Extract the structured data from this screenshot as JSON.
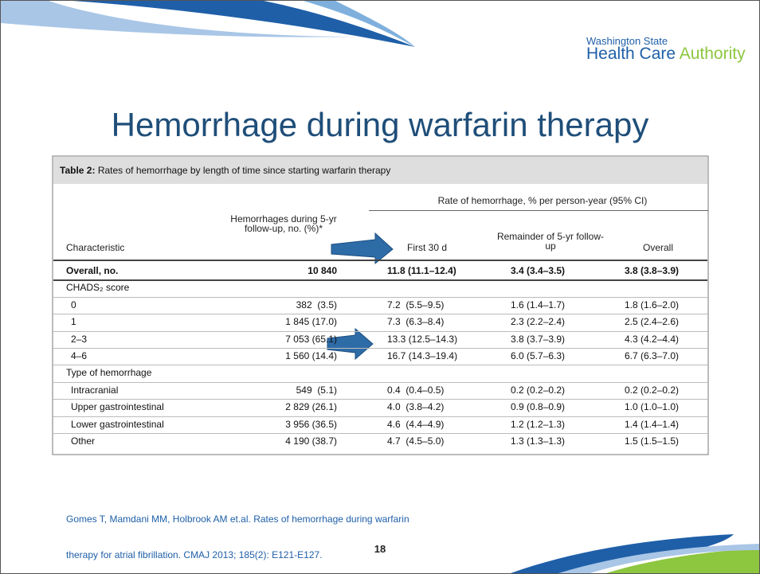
{
  "logo": {
    "line1": "Washington State",
    "line2a": "Health Care ",
    "line2b": "Authority"
  },
  "title": "Hemorrhage during warfarin therapy",
  "table": {
    "caption": {
      "label": "Table 2:",
      "text": "Rates of hemorrhage by length of time since starting warfarin therapy"
    },
    "group_header": "Rate of hemorrhage, % per person-year (95% CI)",
    "columns": [
      "Characteristic",
      "Hemorrhages during 5-yr follow-up, no. (%)*",
      "First 30 d",
      "Remainder of 5-yr follow-up",
      "Overall"
    ],
    "rows": [
      [
        "Overall, no.",
        "10 840",
        "11.8 (11.1–12.4)",
        "3.4 (3.4–3.5)",
        "3.8 (3.8–3.9)"
      ],
      [
        "CHADS₂ score"
      ],
      [
        "0",
        "382  (3.5)",
        "7.2  (5.5–9.5)",
        "1.6 (1.4–1.7)",
        "1.8 (1.6–2.0)"
      ],
      [
        "1",
        "1 845 (17.0)",
        "7.3  (6.3–8.4)",
        "2.3 (2.2–2.4)",
        "2.5 (2.4–2.6)"
      ],
      [
        "2–3",
        "7 053 (65.1)",
        "13.3 (12.5–14.3)",
        "3.8 (3.7–3.9)",
        "4.3 (4.2–4.4)"
      ],
      [
        "4–6",
        "1 560 (14.4)",
        "16.7 (14.3–19.4)",
        "6.0 (5.7–6.3)",
        "6.7 (6.3–7.0)"
      ],
      [
        "Type of hemorrhage"
      ],
      [
        "Intracranial",
        "549  (5.1)",
        "0.4  (0.4–0.5)",
        "0.2 (0.2–0.2)",
        "0.2 (0.2–0.2)"
      ],
      [
        "Upper gastrointestinal",
        "2 829 (26.1)",
        "4.0  (3.8–4.2)",
        "0.9 (0.8–0.9)",
        "1.0 (1.0–1.0)"
      ],
      [
        "Lower gastrointestinal",
        "3 956 (36.5)",
        "4.6  (4.4–4.9)",
        "1.2 (1.2–1.3)",
        "1.4 (1.4–1.4)"
      ],
      [
        "Other",
        "4 190 (38.7)",
        "4.7  (4.5–5.0)",
        "1.3 (1.3–1.3)",
        "1.5 (1.5–1.5)"
      ]
    ]
  },
  "citation": [
    "Gomes T, Mamdani MM, Holbrook AM et.al. Rates of hemorrhage during warfarin",
    "therapy for atrial fibrillation. CMAJ 2013; 185(2): E121-E127."
  ],
  "page_number": "18"
}
